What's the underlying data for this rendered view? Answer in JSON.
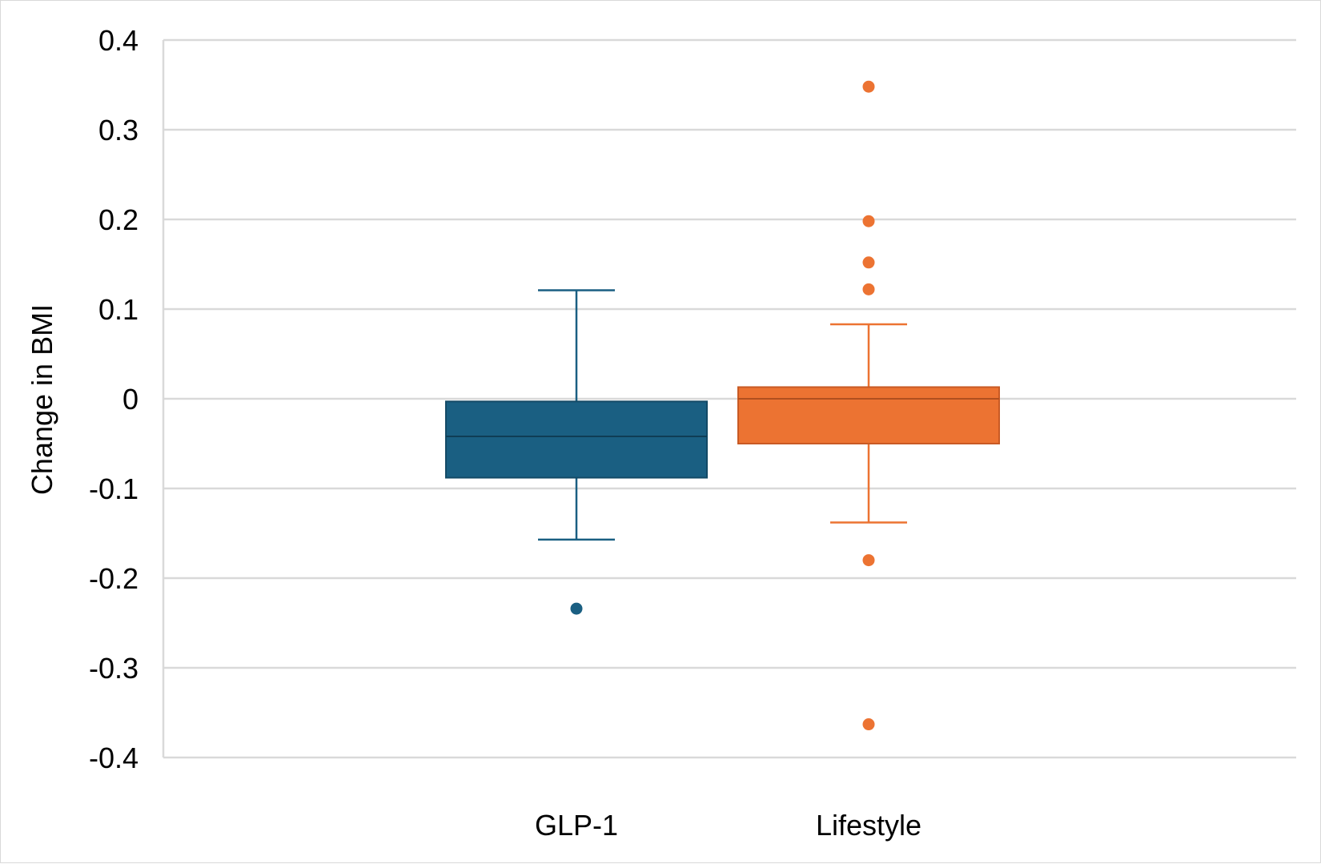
{
  "chart_data": {
    "type": "box",
    "ylabel": "Change in BMI",
    "xlabel": "",
    "ylim": [
      -0.4,
      0.4
    ],
    "yticks": [
      0.4,
      0.3,
      0.2,
      0.1,
      0,
      -0.1,
      -0.2,
      -0.3,
      -0.4
    ],
    "ytick_labels": [
      "0.4",
      "0.3",
      "0.2",
      "0.1",
      "0",
      "-0.1",
      "-0.2",
      "-0.3",
      "-0.4"
    ],
    "grid": true,
    "categories": [
      "GLP-1",
      "Lifestyle"
    ],
    "boxes": [
      {
        "category": "GLP-1",
        "color": "#1a5f82",
        "whisker_low": -0.157,
        "q1": -0.088,
        "median": -0.042,
        "q3": -0.003,
        "whisker_high": 0.121,
        "outliers": [
          -0.234
        ]
      },
      {
        "category": "Lifestyle",
        "color": "#ec7332",
        "whisker_low": -0.138,
        "q1": -0.05,
        "median": 0.0,
        "q3": 0.013,
        "whisker_high": 0.083,
        "outliers": [
          0.348,
          0.198,
          0.152,
          0.122,
          -0.18,
          -0.363
        ]
      }
    ]
  }
}
